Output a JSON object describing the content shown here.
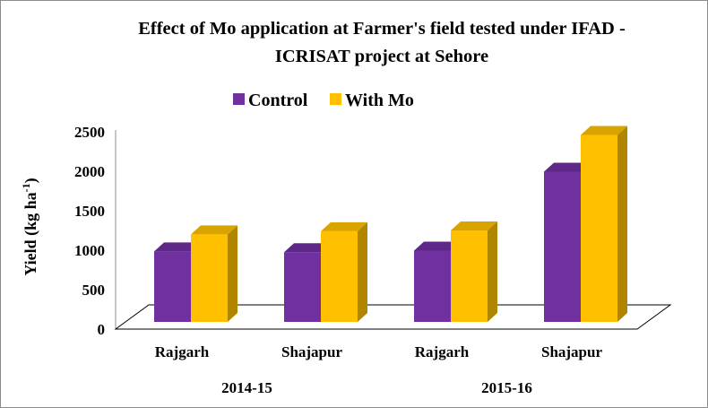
{
  "chart_data": {
    "type": "bar",
    "title_lines": [
      "Effect of Mo application at Farmer's field tested under IFAD -",
      "ICRISAT project at Sehore"
    ],
    "ylabel": "Yield  (kg ha",
    "ylabel_sup": "-1",
    "ylabel_close": ")",
    "ylim": [
      0,
      2500
    ],
    "yticks": [
      "0",
      "500",
      "1000",
      "1500",
      "2000",
      "2500"
    ],
    "categories": [
      "Rajgarh",
      "Shajapur",
      "Rajgarh",
      "Shajapur"
    ],
    "groups": [
      {
        "label": "2014-15",
        "span": [
          0,
          1
        ]
      },
      {
        "label": "2015-16",
        "span": [
          2,
          3
        ]
      }
    ],
    "series": [
      {
        "name": "Control",
        "values": [
          985,
          975,
          995,
          1995
        ],
        "color": "#7030A0",
        "side_color": "#4B1F6E",
        "top_color": "#5E2888"
      },
      {
        "name": "With Mo",
        "values": [
          1200,
          1240,
          1250,
          2460
        ],
        "color": "#FFC000",
        "side_color": "#B08600",
        "top_color": "#D9A400"
      }
    ],
    "legend_position": "top",
    "grid": false
  }
}
